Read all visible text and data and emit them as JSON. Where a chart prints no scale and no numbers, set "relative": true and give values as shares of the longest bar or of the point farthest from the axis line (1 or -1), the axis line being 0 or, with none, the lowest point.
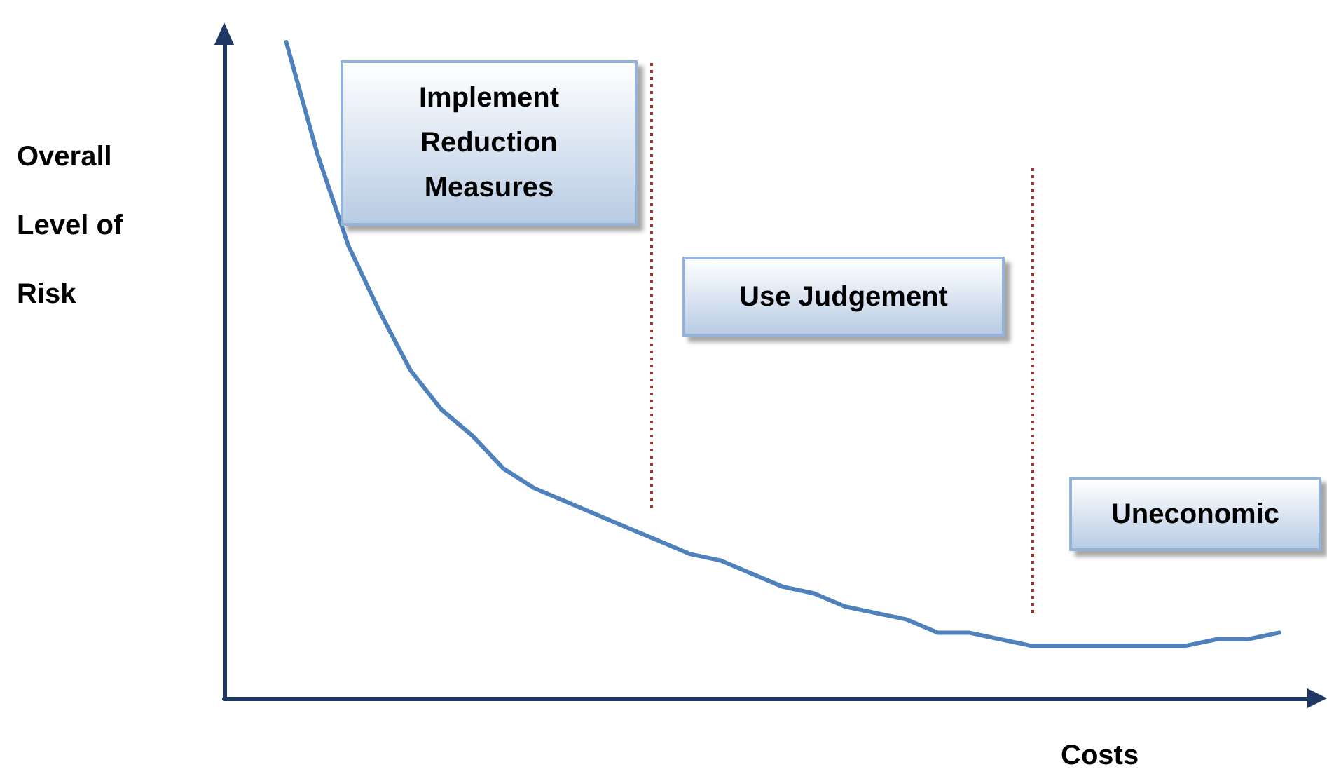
{
  "chart_data": {
    "type": "line",
    "relative": true,
    "xlabel": "Costs",
    "ylabel": "Overall Level of Risk",
    "categories": [
      null,
      null,
      null,
      null,
      null,
      null,
      null,
      null,
      null,
      null,
      null,
      null,
      null,
      null,
      null,
      null,
      null,
      null,
      null,
      null,
      null,
      null,
      null,
      null,
      null,
      null,
      null,
      null,
      null,
      null,
      null,
      null,
      null,
      null,
      null,
      null
    ],
    "grid": false,
    "marker": "none",
    "line_style": "solid",
    "series": [
      {
        "color": "#4f81bd",
        "values": [
          null,
          null,
          1.0,
          0.83,
          0.69,
          0.59,
          0.5,
          0.44,
          0.4,
          0.35,
          0.32,
          0.3,
          0.28,
          0.26,
          0.24,
          0.22,
          0.21,
          0.19,
          0.17,
          0.16,
          0.14,
          0.13,
          0.12,
          0.1,
          0.1,
          0.09,
          0.08,
          0.08,
          0.08,
          0.08,
          0.08,
          0.08,
          0.09,
          0.09,
          0.1,
          null
        ]
      }
    ],
    "annotations": [
      "Implement Reduction Measures",
      "Use Judgement",
      "Uneconomic"
    ]
  }
}
